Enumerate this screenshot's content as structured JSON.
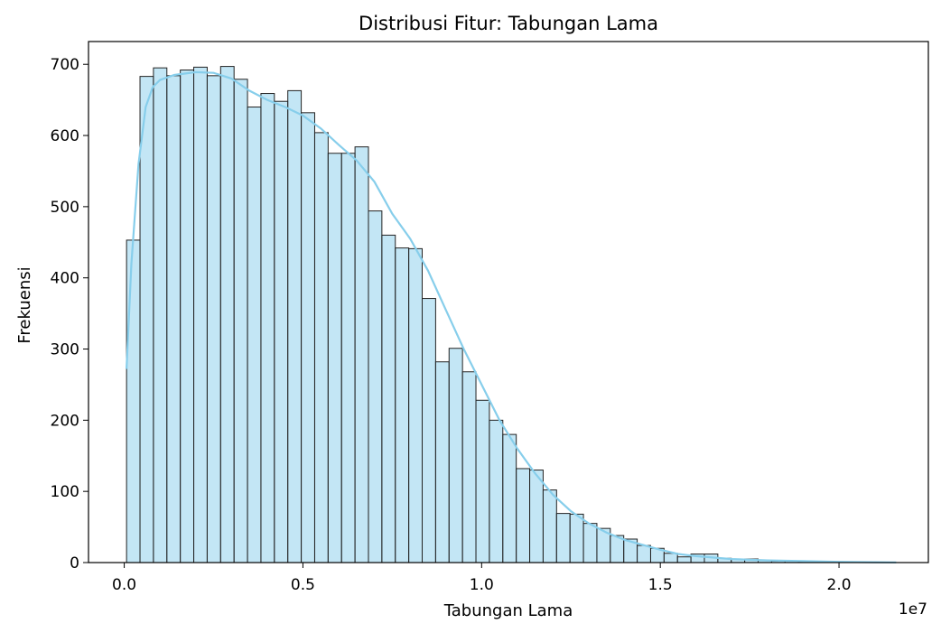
{
  "chart_data": {
    "type": "bar",
    "title": "Distribusi Fitur: Tabungan Lama",
    "xlabel": "Tabungan Lama",
    "ylabel": "Frekuensi",
    "x_offset_label": "1e7",
    "x_ticks": [
      0.0,
      0.5,
      1.0,
      1.5,
      2.0
    ],
    "x_tick_labels": [
      "0.0",
      "0.5",
      "1.0",
      "1.5",
      "2.0"
    ],
    "y_ticks": [
      0,
      100,
      200,
      300,
      400,
      500,
      600,
      700
    ],
    "y_tick_labels": [
      "0",
      "100",
      "200",
      "300",
      "400",
      "500",
      "600",
      "700"
    ],
    "xlim": [
      -0.1,
      2.25
    ],
    "ylim": [
      0,
      732
    ],
    "grid": false,
    "bar_color": "#87ceeb",
    "bar_edge_color": "#222222",
    "kde_color": "#87ceeb",
    "bin_start": 0.0065,
    "bin_width": 0.0376,
    "values": [
      453,
      683,
      695,
      684,
      692,
      696,
      684,
      697,
      679,
      640,
      659,
      648,
      663,
      632,
      604,
      575,
      575,
      584,
      494,
      460,
      442,
      441,
      371,
      282,
      301,
      268,
      228,
      200,
      180,
      132,
      130,
      102,
      69,
      68,
      55,
      48,
      38,
      33,
      24,
      20,
      13,
      8,
      12,
      12,
      6,
      5,
      5,
      3,
      2,
      2,
      1,
      1,
      1,
      1
    ],
    "kde": {
      "x": [
        0.0065,
        0.02,
        0.04,
        0.06,
        0.08,
        0.1,
        0.14,
        0.2,
        0.25,
        0.3,
        0.35,
        0.4,
        0.45,
        0.5,
        0.55,
        0.6,
        0.65,
        0.7,
        0.75,
        0.8,
        0.85,
        0.9,
        0.95,
        1.0,
        1.05,
        1.1,
        1.15,
        1.2,
        1.25,
        1.3,
        1.35,
        1.4,
        1.45,
        1.5,
        1.55,
        1.6,
        1.65,
        1.7,
        1.8,
        1.9,
        2.0,
        2.1,
        2.16
      ],
      "y": [
        272,
        420,
        560,
        640,
        668,
        678,
        685,
        689,
        688,
        680,
        663,
        650,
        640,
        628,
        610,
        587,
        565,
        535,
        490,
        455,
        410,
        355,
        300,
        250,
        200,
        160,
        125,
        95,
        72,
        55,
        42,
        32,
        25,
        18,
        12,
        9,
        7,
        5,
        3,
        2,
        1,
        0.5,
        0.3
      ]
    }
  }
}
